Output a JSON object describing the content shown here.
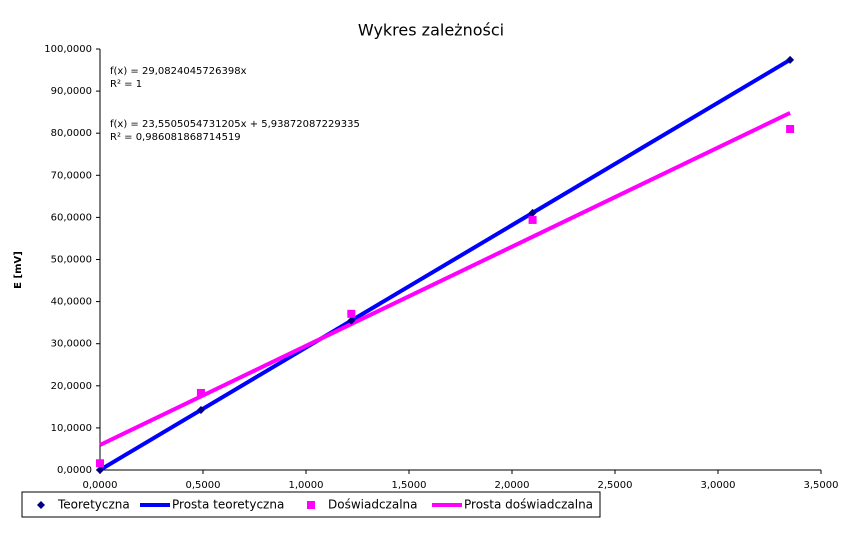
{
  "chart_data": {
    "type": "scatter",
    "title": "Wykres zależności",
    "y_label": "E [mV]",
    "annotations": [
      "f(x) = 29,0824045726398x",
      "R² = 1",
      "f(x) = 23,5505054731205x + 5,93872087229335",
      "R² = 0,986081868714519"
    ],
    "xlim": [
      0,
      3.5
    ],
    "ylim": [
      0,
      100
    ],
    "xticks": [
      {
        "value": 0,
        "label": "0,0000"
      },
      {
        "value": 0.5,
        "label": "0,5000"
      },
      {
        "value": 1,
        "label": "1,0000"
      },
      {
        "value": 1.5,
        "label": "1,5000"
      },
      {
        "value": 2,
        "label": "2,0000"
      },
      {
        "value": 2.5,
        "label": "2,5000"
      },
      {
        "value": 3,
        "label": "3,0000"
      },
      {
        "value": 3.5,
        "label": "3,5000"
      }
    ],
    "yticks": [
      {
        "value": 0,
        "label": "0,0000"
      },
      {
        "value": 10,
        "label": "10,0000"
      },
      {
        "value": 20,
        "label": "20,0000"
      },
      {
        "value": 30,
        "label": "30,0000"
      },
      {
        "value": 40,
        "label": "40,0000"
      },
      {
        "value": 50,
        "label": "50,0000"
      },
      {
        "value": 60,
        "label": "60,0000"
      },
      {
        "value": 70,
        "label": "70,0000"
      },
      {
        "value": 80,
        "label": "80,0000"
      },
      {
        "value": 90,
        "label": "90,0000"
      },
      {
        "value": 100,
        "label": "100,0000"
      }
    ],
    "grid": false,
    "legend": "bottom",
    "series": [
      {
        "name": "Teoretyczna",
        "color": "#000080",
        "marker": "diamond",
        "x": [
          0,
          0.49,
          1.22,
          2.1,
          3.35
        ],
        "values": [
          0,
          14.25,
          35.48,
          61.07,
          97.43
        ]
      },
      {
        "name": "Prosta teoretyczna",
        "color": "#0000ff",
        "marker": "line",
        "x": [
          0,
          3.35
        ],
        "values": [
          0,
          97.43
        ]
      },
      {
        "name": "Doświadczalna",
        "color": "#ff00ff",
        "marker": "square",
        "x": [
          0,
          0.49,
          1.22,
          2.1,
          3.35
        ],
        "values": [
          1.6,
          18.3,
          37.1,
          59.4,
          81.0
        ]
      },
      {
        "name": "Prosta doświadczalna",
        "color": "#ff00ff",
        "marker": "line",
        "x": [
          0,
          3.35
        ],
        "values": [
          5.94,
          84.83
        ]
      }
    ]
  }
}
